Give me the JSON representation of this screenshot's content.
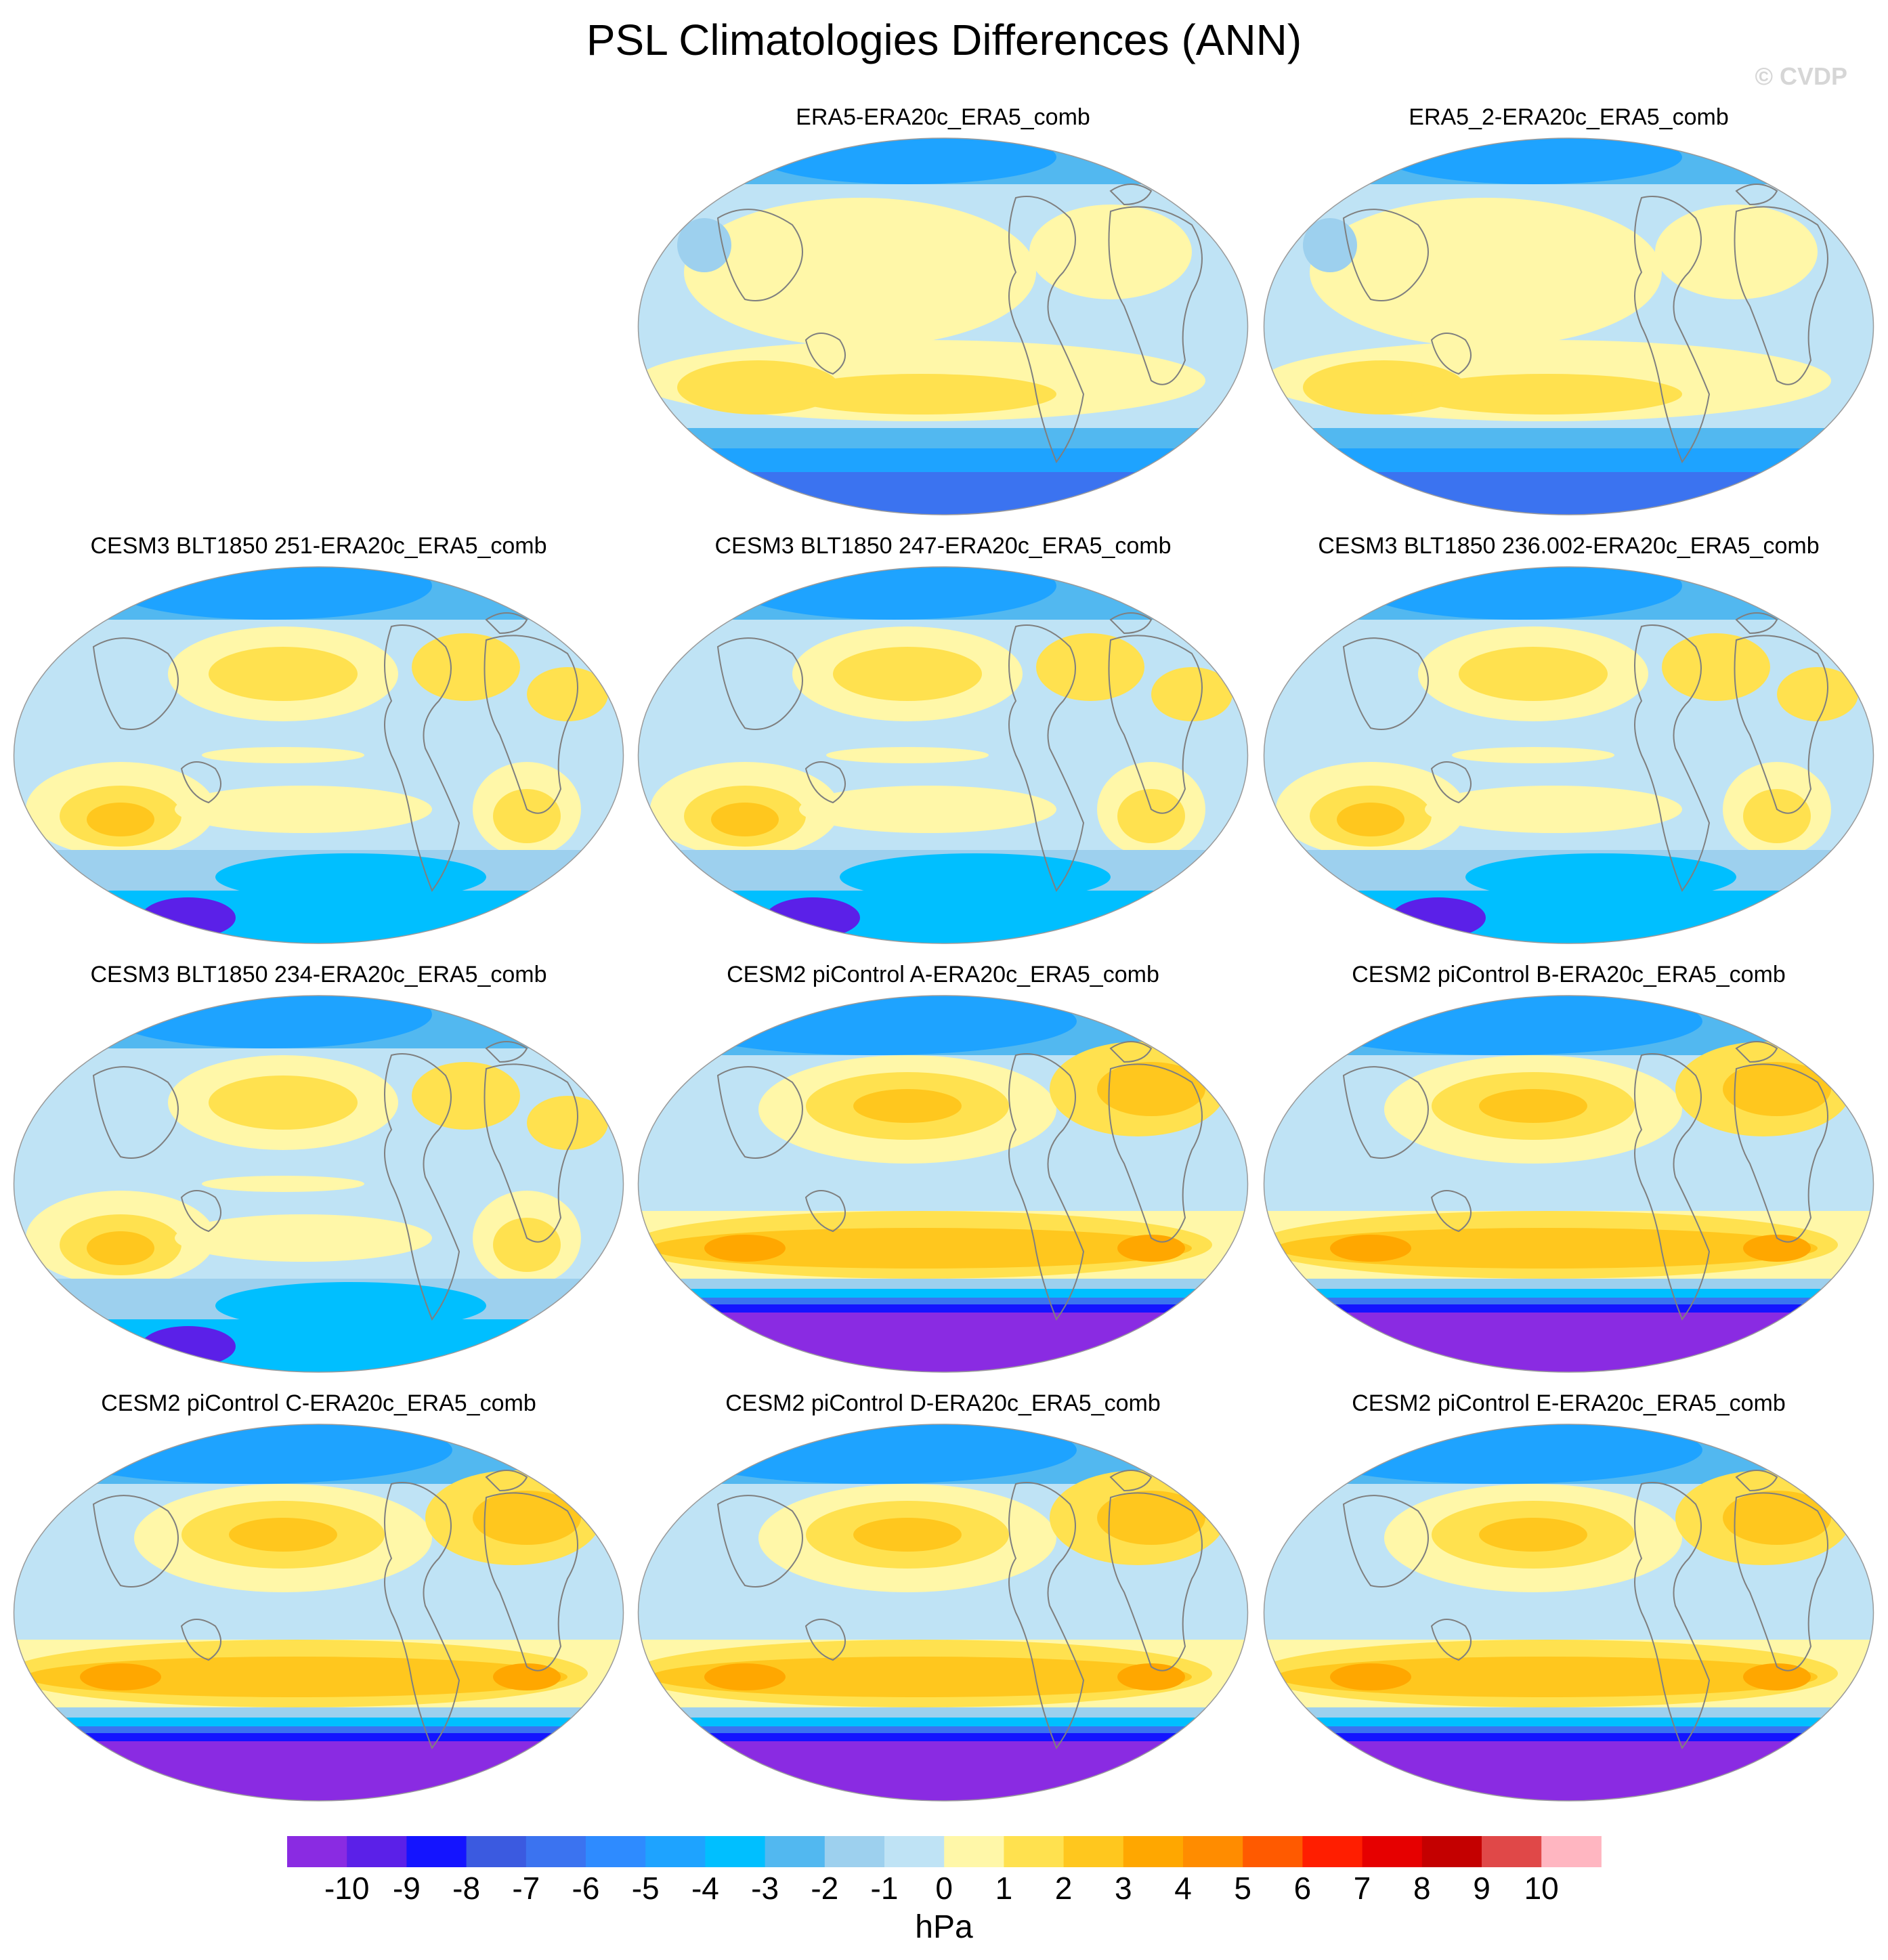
{
  "title": "PSL Climatologies Differences (ANN)",
  "watermark": "© CVDP",
  "chart_data": {
    "type": "heatmap",
    "colorbar": {
      "label": "hPa",
      "levels": [
        -10,
        -9,
        -8,
        -7,
        -6,
        -5,
        -4,
        -3,
        -2,
        -1,
        0,
        1,
        2,
        3,
        4,
        5,
        6,
        7,
        8,
        9,
        10
      ],
      "colors": [
        "#8a2be2",
        "#5b20e8",
        "#1414ff",
        "#3b5ae0",
        "#3b73f0",
        "#2e8bff",
        "#1ea3ff",
        "#00bfff",
        "#52b8f0",
        "#9dd0ee",
        "#bfe3f5",
        "#fff7a8",
        "#ffe14f",
        "#ffc71e",
        "#ffa700",
        "#ff8c00",
        "#ff5a00",
        "#ff1e00",
        "#e60000",
        "#c40000",
        "#e04848",
        "#ffb6c1"
      ]
    },
    "panels": [
      {
        "title": "ERA5-ERA20c_ERA5_comb",
        "style": "reanalysis"
      },
      {
        "title": "ERA5_2-ERA20c_ERA5_comb",
        "style": "reanalysis"
      },
      {
        "title": "CESM3 BLT1850 251-ERA20c_ERA5_comb",
        "style": "cesm3"
      },
      {
        "title": "CESM3 BLT1850 247-ERA20c_ERA5_comb",
        "style": "cesm3"
      },
      {
        "title": "CESM3 BLT1850 236.002-ERA20c_ERA5_comb",
        "style": "cesm3"
      },
      {
        "title": "CESM3 BLT1850 234-ERA20c_ERA5_comb",
        "style": "cesm3"
      },
      {
        "title": "CESM2 piControl A-ERA20c_ERA5_comb",
        "style": "cesm2"
      },
      {
        "title": "CESM2 piControl B-ERA20c_ERA5_comb",
        "style": "cesm2"
      },
      {
        "title": "CESM2 piControl C-ERA20c_ERA5_comb",
        "style": "cesm2"
      },
      {
        "title": "CESM2 piControl D-ERA20c_ERA5_comb",
        "style": "cesm2"
      },
      {
        "title": "CESM2 piControl E-ERA20c_ERA5_comb",
        "style": "cesm2"
      }
    ]
  }
}
